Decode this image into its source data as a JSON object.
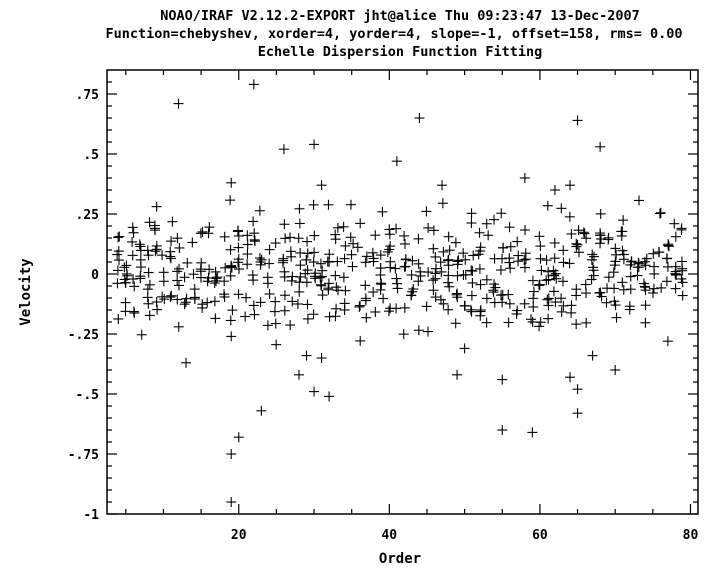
{
  "chart_data": {
    "type": "scatter",
    "title_lines": [
      "NOAO/IRAF V2.12.2-EXPORT jht@alice Thu 09:23:47 13-Dec-2007",
      "Function=chebyshev, xorder=4, yorder=4, slope=-1, offset=158, rms= 0.00",
      "Echelle Dispersion Function Fitting"
    ],
    "xlabel": "Order",
    "ylabel": "Velocity",
    "xlim": [
      2.5,
      81
    ],
    "ylim": [
      -1.0,
      0.85
    ],
    "x_ticks": [
      20,
      40,
      60,
      80
    ],
    "x_tick_labels": [
      "20",
      "40",
      "60",
      "80"
    ],
    "y_ticks": [
      0.75,
      0.5,
      0.25,
      0,
      -0.25,
      -0.5,
      -0.75,
      -1
    ],
    "y_tick_labels": [
      ".75",
      ".5",
      ".25",
      "0",
      "-.25",
      "-.5",
      "-.75",
      "-1"
    ],
    "marker": "plus",
    "outliers": [
      [
        12,
        0.71
      ],
      [
        22,
        0.79
      ],
      [
        26,
        0.52
      ],
      [
        30,
        0.54
      ],
      [
        19,
        0.38
      ],
      [
        31,
        0.37
      ],
      [
        41,
        0.47
      ],
      [
        44,
        0.65
      ],
      [
        47,
        0.37
      ],
      [
        58,
        0.4
      ],
      [
        62,
        0.35
      ],
      [
        64,
        0.37
      ],
      [
        65,
        0.64
      ],
      [
        68,
        0.53
      ],
      [
        13,
        -0.37
      ],
      [
        19,
        -0.26
      ],
      [
        23,
        -0.57
      ],
      [
        28,
        -0.42
      ],
      [
        29,
        -0.34
      ],
      [
        30,
        -0.49
      ],
      [
        31,
        -0.35
      ],
      [
        32,
        -0.51
      ],
      [
        49,
        -0.42
      ],
      [
        50,
        -0.31
      ],
      [
        55,
        -0.44
      ],
      [
        55,
        -0.65
      ],
      [
        59,
        -0.66
      ],
      [
        64,
        -0.43
      ],
      [
        65,
        -0.48
      ],
      [
        65,
        -0.58
      ],
      [
        67,
        -0.34
      ],
      [
        70,
        -0.4
      ],
      [
        77,
        -0.28
      ],
      [
        19,
        -0.75
      ],
      [
        20,
        -0.68
      ],
      [
        19,
        -0.95
      ]
    ],
    "band_orders": [
      4,
      5,
      6,
      7,
      8,
      9,
      10,
      11,
      12,
      13,
      14,
      15,
      16,
      17,
      18,
      19,
      20,
      21,
      22,
      23,
      24,
      25,
      26,
      27,
      28,
      29,
      30,
      31,
      32,
      33,
      34,
      35,
      36,
      37,
      38,
      39,
      40,
      41,
      42,
      43,
      44,
      45,
      46,
      47,
      48,
      49,
      50,
      51,
      52,
      53,
      54,
      55,
      56,
      57,
      58,
      59,
      60,
      61,
      62,
      63,
      64,
      65,
      66,
      67,
      68,
      69,
      70,
      71,
      72,
      73,
      74,
      75,
      76,
      77,
      78,
      79
    ],
    "band_spread": 0.22
  }
}
